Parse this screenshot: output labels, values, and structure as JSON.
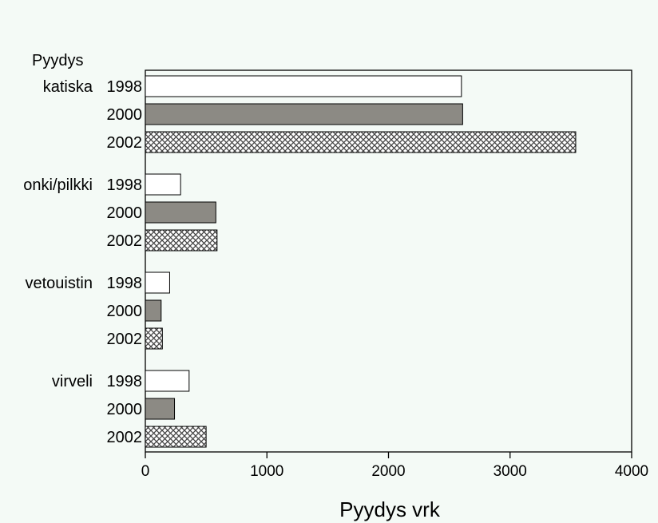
{
  "colors": {
    "background": "#f4faf6",
    "bar_1998": "#ffffff",
    "bar_2000": "#8c8a84",
    "hatch": "#444444",
    "outline": "#000000"
  },
  "chart_data": {
    "type": "bar",
    "orientation": "horizontal",
    "group_heading": "Pyydys",
    "xlabel": "Pyydys vrk",
    "xlim": [
      0,
      4000
    ],
    "xticks": [
      0,
      1000,
      2000,
      3000,
      4000
    ],
    "categories": [
      "katiska",
      "onki/pilkki",
      "vetouistin",
      "virveli"
    ],
    "sub_categories": [
      "1998",
      "2000",
      "2002"
    ],
    "series": [
      {
        "sub": "1998",
        "fill": "white",
        "values": [
          2600,
          290,
          200,
          360
        ]
      },
      {
        "sub": "2000",
        "fill": "gray",
        "values": [
          2610,
          580,
          130,
          240
        ]
      },
      {
        "sub": "2002",
        "fill": "crosshatch",
        "values": [
          3540,
          590,
          140,
          500
        ]
      }
    ],
    "grid": false,
    "legend": "none"
  }
}
